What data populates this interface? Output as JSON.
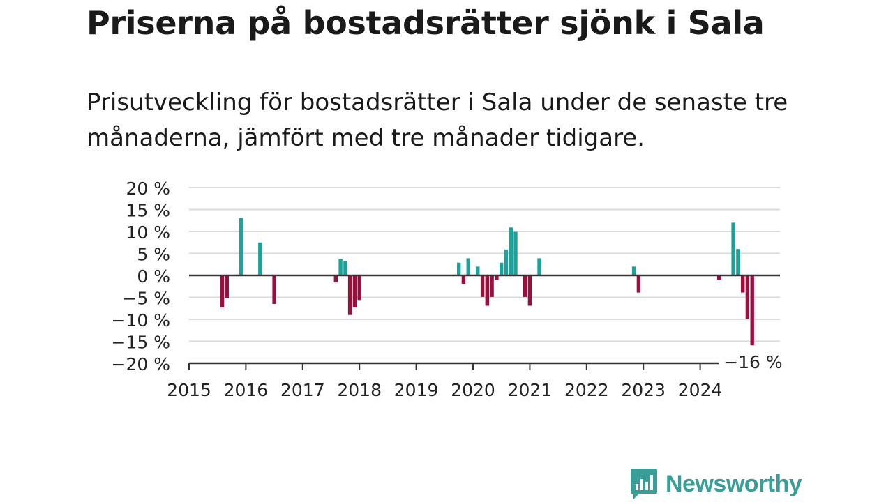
{
  "header": {
    "title": "Priserna på bostadsrätter sjönk i Sala",
    "subtitle": "Prisutveckling för bostadsrätter i Sala under de senaste tre månaderna, jämfört med tre månader tidigare."
  },
  "logo": {
    "text": "Newsworthy",
    "icon": "bar-chart-bubble-icon"
  },
  "colors": {
    "positive": "#1aa39b",
    "negative": "#9b0f3d",
    "grid": "#d9d9d9",
    "zero": "#333333",
    "logo": "#3a9e98"
  },
  "chart_data": {
    "type": "bar",
    "title": "",
    "xlabel": "",
    "ylabel": "",
    "ylim": [
      -20,
      20
    ],
    "y_ticks": [
      "20 %",
      "15 %",
      "10 %",
      "5 %",
      "0 %",
      "−5 %",
      "−10 %",
      "−15 %",
      "−20 %"
    ],
    "y_tick_values": [
      20,
      15,
      10,
      5,
      0,
      -5,
      -10,
      -15,
      -20
    ],
    "x_ticks": [
      "2015",
      "2016",
      "2017",
      "2018",
      "2019",
      "2020",
      "2021",
      "2022",
      "2023",
      "2024"
    ],
    "x_range": [
      "2015-01",
      "2025-04"
    ],
    "grid": true,
    "series": [
      {
        "values": [
          {
            "date": "2015-08",
            "value": -7.3
          },
          {
            "date": "2015-09",
            "value": -5.1
          },
          {
            "date": "2015-12",
            "value": 13.1
          },
          {
            "date": "2016-04",
            "value": 7.5
          },
          {
            "date": "2016-07",
            "value": -6.5
          },
          {
            "date": "2017-08",
            "value": -1.6
          },
          {
            "date": "2017-09",
            "value": 3.8
          },
          {
            "date": "2017-10",
            "value": 3.2
          },
          {
            "date": "2017-11",
            "value": -9.0
          },
          {
            "date": "2017-12",
            "value": -7.3
          },
          {
            "date": "2018-01",
            "value": -5.6
          },
          {
            "date": "2019-10",
            "value": 2.9
          },
          {
            "date": "2019-11",
            "value": -1.9
          },
          {
            "date": "2019-12",
            "value": 3.9
          },
          {
            "date": "2020-02",
            "value": 2.0
          },
          {
            "date": "2020-03",
            "value": -4.9
          },
          {
            "date": "2020-04",
            "value": -6.9
          },
          {
            "date": "2020-05",
            "value": -4.9
          },
          {
            "date": "2020-06",
            "value": -1.0
          },
          {
            "date": "2020-07",
            "value": 2.9
          },
          {
            "date": "2020-08",
            "value": 5.9
          },
          {
            "date": "2020-09",
            "value": 10.9
          },
          {
            "date": "2020-10",
            "value": 9.9
          },
          {
            "date": "2020-12",
            "value": -4.9
          },
          {
            "date": "2021-01",
            "value": -6.9
          },
          {
            "date": "2021-03",
            "value": 3.9
          },
          {
            "date": "2022-11",
            "value": 2.0
          },
          {
            "date": "2022-12",
            "value": -3.9
          },
          {
            "date": "2024-05",
            "value": -1.0
          },
          {
            "date": "2024-08",
            "value": 12.0
          },
          {
            "date": "2024-09",
            "value": 6.0
          },
          {
            "date": "2024-10",
            "value": -3.9
          },
          {
            "date": "2024-11",
            "value": -9.9
          },
          {
            "date": "2024-12",
            "value": -15.9
          }
        ]
      }
    ],
    "annotations": [
      {
        "text": "−16 %",
        "date": "2024-12",
        "value": -15.9
      }
    ]
  }
}
